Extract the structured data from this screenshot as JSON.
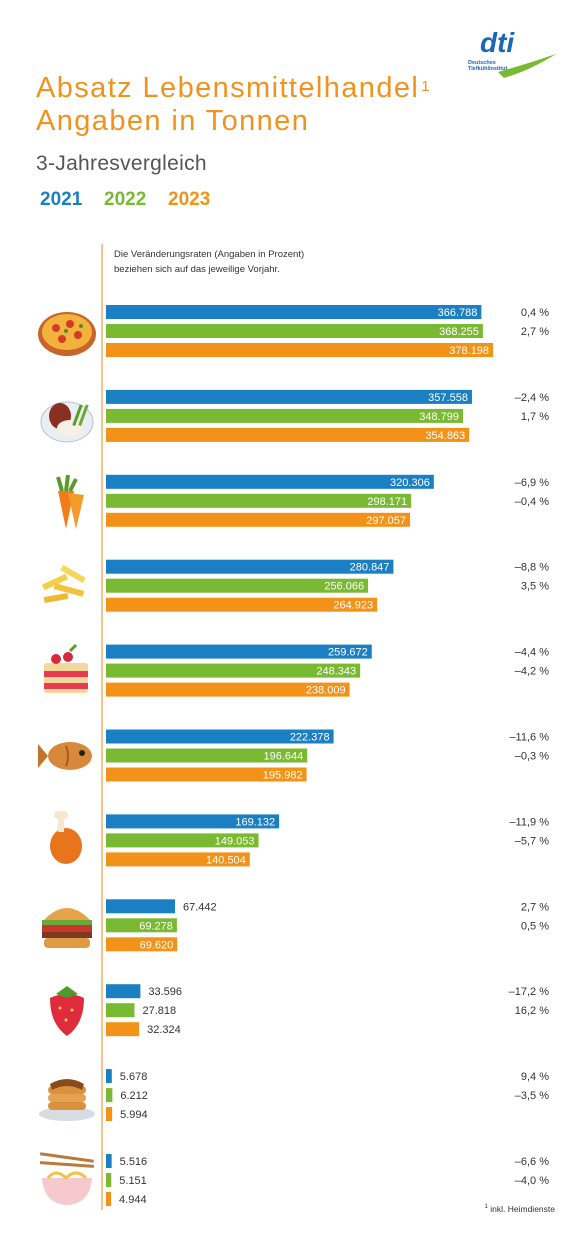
{
  "header": {
    "title_line1": "Absatz Lebensmittelhandel",
    "title_sup": "1",
    "title_line2": "Angaben in Tonnen",
    "subtitle": "3-Jahresvergleich",
    "note_line1": "Die Veränderungsraten (Angaben in Prozent)",
    "note_line2": "beziehen sich auf das jeweilige Vorjahr.",
    "footnote_sup": "1",
    "footnote": "inkl. Heimdienste"
  },
  "logo": {
    "text": "dti",
    "sub_line1": "Deutsches",
    "sub_line2": "Tiefkühlinstitut"
  },
  "colors": {
    "2021": "#1b7fc4",
    "2022": "#7ab932",
    "2023": "#f39219",
    "title": "#f0931e",
    "axis": "#f6c38d"
  },
  "chart_data": {
    "type": "bar",
    "orientation": "horizontal",
    "title": "Absatz Lebensmittelhandel",
    "ylabel": "Angaben in Tonnen",
    "series": [
      {
        "name": "2021",
        "values": [
          366788,
          357558,
          320306,
          280847,
          259672,
          222378,
          169132,
          67442,
          33596,
          5678,
          5516
        ],
        "labels": [
          "366.788",
          "357.558",
          "320.306",
          "280.847",
          "259.672",
          "222.378",
          "169.132",
          "67.442",
          "33.596",
          "5.678",
          "5.516"
        ],
        "changes": [
          "0,4 %",
          "–2,4 %",
          "–6,9 %",
          "–8,8 %",
          "–4,4 %",
          "–11,6 %",
          "–11,9 %",
          "2,7 %",
          "–17,2 %",
          "9,4 %",
          "–6,6 %"
        ]
      },
      {
        "name": "2022",
        "values": [
          368255,
          348799,
          298171,
          256066,
          248343,
          196644,
          149053,
          69278,
          27818,
          6212,
          5151
        ],
        "labels": [
          "368.255",
          "348.799",
          "298.171",
          "256.066",
          "248.343",
          "196.644",
          "149.053",
          "69.278",
          "27.818",
          "6.212",
          "5.151"
        ],
        "changes": [
          "2,7 %",
          "1,7 %",
          "–0,4 %",
          "3,5 %",
          "–4,2 %",
          "–0,3 %",
          "–5,7 %",
          "0,5 %",
          "16,2 %",
          "–3,5 %",
          "–4,0 %"
        ]
      },
      {
        "name": "2023",
        "values": [
          378198,
          354863,
          297057,
          264923,
          238009,
          195982,
          140504,
          69620,
          32324,
          5994,
          4944
        ],
        "labels": [
          "378.198",
          "354.863",
          "297.057",
          "264.923",
          "238.009",
          "195.982",
          "140.504",
          "69.620",
          "32.324",
          "5.994",
          "4.944"
        ],
        "changes": []
      }
    ],
    "category_icons": [
      "pizza-icon",
      "meal-plate-icon",
      "carrot-icon",
      "fries-icon",
      "cake-icon",
      "fish-icon",
      "chicken-leg-icon",
      "burger-icon",
      "strawberry-icon",
      "pancakes-icon",
      "noodles-icon"
    ],
    "legend": [
      "2021",
      "2022",
      "2023"
    ],
    "legend_position": "top-left",
    "xlim": [
      0,
      384000
    ],
    "grid": false
  }
}
